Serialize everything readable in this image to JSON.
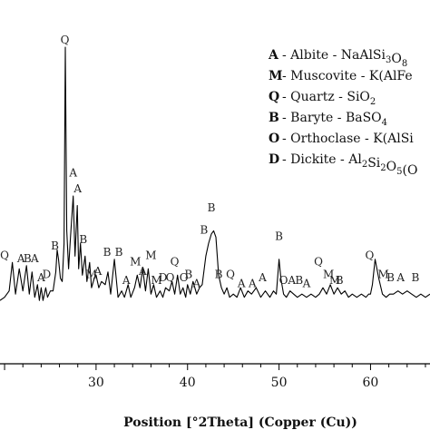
{
  "chart_data": {
    "type": "line",
    "title": "",
    "xlabel": "Position [°2Theta] (Copper (Cu))",
    "ylabel": "",
    "xlim": [
      19.5,
      66.5
    ],
    "ylim": [
      0,
      100
    ],
    "xticks": [
      30,
      40,
      50,
      60
    ],
    "xtick_labels": [
      "30",
      "40",
      "50",
      "60"
    ],
    "grid": false,
    "legend_placement": "top-right",
    "legend": [
      {
        "code": "A",
        "text": " - Albite - NaAlSi",
        "formula": [
          [
            "3",
            "sub"
          ],
          [
            "O",
            ""
          ],
          [
            "8",
            "sub"
          ]
        ]
      },
      {
        "code": "M",
        "text": " - Muscovite - K(AlFe",
        "formula": []
      },
      {
        "code": "Q",
        "text": " - Quartz - SiO",
        "formula": [
          [
            "2",
            "sub"
          ]
        ]
      },
      {
        "code": "B",
        "text": " - Baryte - BaSO",
        "formula": [
          [
            "4",
            "sub"
          ]
        ]
      },
      {
        "code": "O",
        "text": " - Orthoclase - K(AlSi",
        "formula": []
      },
      {
        "code": "D",
        "text": " - Dickite - Al",
        "formula": [
          [
            "2",
            "sub"
          ],
          [
            "Si",
            ""
          ],
          [
            "2",
            "sub"
          ],
          [
            "O",
            ""
          ],
          [
            "5",
            "sub"
          ],
          [
            "(O",
            ""
          ]
        ]
      }
    ],
    "series": [
      {
        "x": [
          19.5,
          20.0,
          20.5,
          20.85,
          21.2,
          21.6,
          22.0,
          22.4,
          22.7,
          23.0,
          23.3,
          23.6,
          23.8,
          24.0,
          24.2,
          24.5,
          24.7,
          25.0,
          25.3,
          25.6,
          25.75,
          25.9,
          26.1,
          26.3,
          26.5,
          26.64,
          26.8,
          27.0,
          27.2,
          27.5,
          27.7,
          27.95,
          28.1,
          28.3,
          28.5,
          28.8,
          29.0,
          29.3,
          29.5,
          29.8,
          30.0,
          30.3,
          30.6,
          31.0,
          31.3,
          31.6,
          32.0,
          32.4,
          32.8,
          33.1,
          33.5,
          33.8,
          34.2,
          34.5,
          34.8,
          35.1,
          35.4,
          35.7,
          36.0,
          36.3,
          36.6,
          37.0,
          37.3,
          37.6,
          38.0,
          38.3,
          38.6,
          38.9,
          39.2,
          39.5,
          39.8,
          40.0,
          40.3,
          40.6,
          41.0,
          41.3,
          41.6,
          42.0,
          42.3,
          42.6,
          42.85,
          43.1,
          43.4,
          43.7,
          44.0,
          44.3,
          44.6,
          45.0,
          45.4,
          45.8,
          46.2,
          46.6,
          47.0,
          47.5,
          48.0,
          48.5,
          49.0,
          49.4,
          49.7,
          50.0,
          50.2,
          50.5,
          50.8,
          51.2,
          51.6,
          52.0,
          52.5,
          53.0,
          53.5,
          54.0,
          54.4,
          54.8,
          55.2,
          55.6,
          56.0,
          56.4,
          56.8,
          57.2,
          57.6,
          58.0,
          58.5,
          59.0,
          59.5,
          59.8,
          60.0,
          60.2,
          60.5,
          60.9,
          61.3,
          61.7,
          62.1,
          62.5,
          63.0,
          63.5,
          64.0,
          64.5,
          65.0,
          65.5,
          66.0,
          66.5
        ],
        "y": [
          20,
          21,
          23,
          32,
          22,
          30,
          23,
          31,
          22,
          29,
          21,
          25,
          20,
          24,
          20,
          24,
          21,
          23,
          23,
          29,
          36,
          33,
          27,
          26,
          38,
          100,
          42,
          30,
          40,
          53,
          34,
          50,
          30,
          38,
          28,
          34,
          26,
          32,
          24,
          27,
          28,
          24,
          26,
          25,
          29,
          22,
          33,
          21,
          23,
          21,
          25,
          21,
          24,
          28,
          24,
          30,
          23,
          30,
          22,
          25,
          21,
          23,
          21,
          24,
          23,
          26,
          22,
          28,
          22,
          24,
          21,
          25,
          22,
          26,
          22,
          24,
          25,
          34,
          38,
          41,
          42,
          40,
          28,
          24,
          22,
          24,
          21,
          22,
          21,
          24,
          21,
          23,
          22,
          24,
          21,
          23,
          21,
          23,
          22,
          33,
          27,
          22,
          21,
          23,
          22,
          21,
          22,
          21,
          22,
          21,
          22,
          24,
          22,
          25,
          22,
          24,
          22,
          23,
          21,
          22,
          21,
          22,
          21,
          22,
          22,
          25,
          33,
          27,
          22,
          21,
          22,
          22,
          23,
          22,
          23,
          22,
          21,
          22,
          21,
          22
        ]
      }
    ],
    "peak_labels": [
      {
        "x": 20.0,
        "y": 32,
        "text": "Q"
      },
      {
        "x": 21.8,
        "y": 31,
        "text": "A"
      },
      {
        "x": 22.5,
        "y": 31,
        "text": "B"
      },
      {
        "x": 23.3,
        "y": 31,
        "text": "A"
      },
      {
        "x": 24.0,
        "y": 25,
        "text": "A"
      },
      {
        "x": 24.6,
        "y": 26,
        "text": "D"
      },
      {
        "x": 25.5,
        "y": 35,
        "text": "B"
      },
      {
        "x": 26.6,
        "y": 100,
        "text": "Q"
      },
      {
        "x": 27.5,
        "y": 58,
        "text": "A"
      },
      {
        "x": 28.0,
        "y": 53,
        "text": "A"
      },
      {
        "x": 28.6,
        "y": 37,
        "text": "B"
      },
      {
        "x": 29.5,
        "y": 26,
        "text": "M"
      },
      {
        "x": 30.2,
        "y": 27,
        "text": "A"
      },
      {
        "x": 31.2,
        "y": 33,
        "text": "B"
      },
      {
        "x": 32.5,
        "y": 33,
        "text": "B"
      },
      {
        "x": 33.3,
        "y": 24,
        "text": "A"
      },
      {
        "x": 34.3,
        "y": 30,
        "text": "M"
      },
      {
        "x": 35.1,
        "y": 27,
        "text": "A"
      },
      {
        "x": 36.0,
        "y": 32,
        "text": "M"
      },
      {
        "x": 36.6,
        "y": 24,
        "text": "M"
      },
      {
        "x": 37.3,
        "y": 25,
        "text": "D"
      },
      {
        "x": 38.1,
        "y": 25,
        "text": "Q"
      },
      {
        "x": 38.6,
        "y": 30,
        "text": "Q"
      },
      {
        "x": 39.6,
        "y": 25,
        "text": "O"
      },
      {
        "x": 40.1,
        "y": 26,
        "text": "B"
      },
      {
        "x": 41.0,
        "y": 23,
        "text": "A"
      },
      {
        "x": 41.8,
        "y": 40,
        "text": "B"
      },
      {
        "x": 42.6,
        "y": 47,
        "text": "B"
      },
      {
        "x": 43.4,
        "y": 26,
        "text": "B"
      },
      {
        "x": 44.7,
        "y": 26,
        "text": "Q"
      },
      {
        "x": 45.9,
        "y": 23,
        "text": "A"
      },
      {
        "x": 47.1,
        "y": 23,
        "text": "A"
      },
      {
        "x": 48.2,
        "y": 25,
        "text": "A"
      },
      {
        "x": 50.0,
        "y": 38,
        "text": "B"
      },
      {
        "x": 50.5,
        "y": 24,
        "text": "O"
      },
      {
        "x": 51.4,
        "y": 24,
        "text": "A"
      },
      {
        "x": 52.2,
        "y": 24,
        "text": "B"
      },
      {
        "x": 53.0,
        "y": 23,
        "text": "A"
      },
      {
        "x": 54.3,
        "y": 30,
        "text": "Q"
      },
      {
        "x": 55.4,
        "y": 26,
        "text": "M"
      },
      {
        "x": 56.1,
        "y": 24,
        "text": "M"
      },
      {
        "x": 56.6,
        "y": 24,
        "text": "B"
      },
      {
        "x": 59.9,
        "y": 32,
        "text": "Q"
      },
      {
        "x": 61.4,
        "y": 26,
        "text": "M"
      },
      {
        "x": 62.2,
        "y": 25,
        "text": "B"
      },
      {
        "x": 63.3,
        "y": 25,
        "text": "A"
      },
      {
        "x": 64.9,
        "y": 25,
        "text": "B"
      }
    ]
  },
  "colors": {
    "line": "#000000",
    "text": "#111111",
    "background": "#ffffff"
  }
}
